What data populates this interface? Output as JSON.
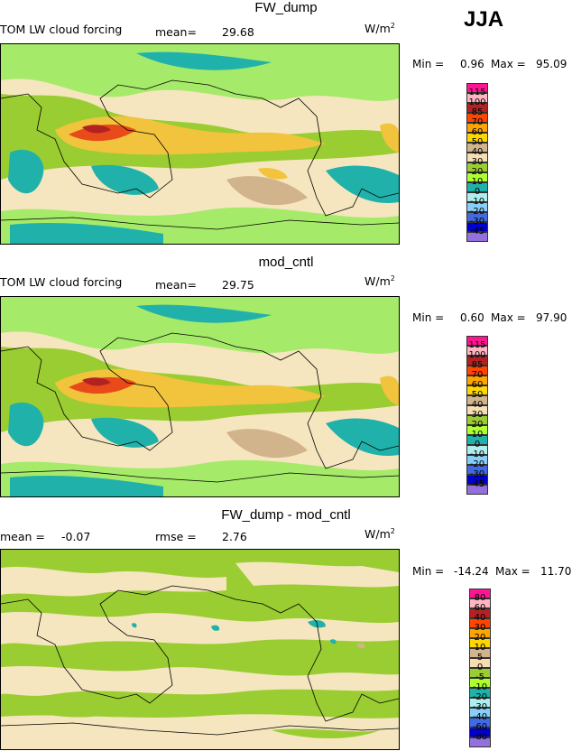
{
  "season": "JJA",
  "units": "W/m",
  "units_exp": "2",
  "panels": [
    {
      "id": "p1",
      "title": "FW_dump",
      "left_label": "TOM LW cloud forcing",
      "stat1_label": "mean=",
      "stat1_value": "29.68",
      "stat2_label": "",
      "stat2_value": "",
      "min_label": "Min =",
      "min_value": "0.96",
      "max_label": "Max =",
      "max_value": "95.09"
    },
    {
      "id": "p2",
      "title": "mod_cntl",
      "left_label": "TOM LW cloud forcing",
      "stat1_label": "mean=",
      "stat1_value": "29.75",
      "stat2_label": "",
      "stat2_value": "",
      "min_label": "Min =",
      "min_value": "0.60",
      "max_label": "Max =",
      "max_value": "97.90"
    },
    {
      "id": "p3",
      "title": "FW_dump - mod_cntl",
      "left_label": "",
      "stat1_label": "mean =",
      "stat1_value": "-0.07",
      "stat2_label": "rmse =",
      "stat2_value": "2.76",
      "min_label": "Min =",
      "min_value": "-14.24",
      "max_label": "Max =",
      "max_value": "11.70"
    }
  ],
  "chart_data": [
    {
      "type": "heatmap",
      "title": "FW_dump",
      "legend_levels": [
        "115",
        "100",
        "85",
        "70",
        "60",
        "50",
        "40",
        "30",
        "20",
        "10",
        "0",
        "-10",
        "-20",
        "-30",
        "-45"
      ],
      "legend_colors": [
        "#ff1493",
        "#ffb6c1",
        "#b22222",
        "#ff4500",
        "#ffa500",
        "#ffd700",
        "#d2b48c",
        "#f5deb3",
        "#9acd32",
        "#adff2f",
        "#20b2aa",
        "#afeeee",
        "#87cefa",
        "#4169e1",
        "#0000cd",
        "#9370db"
      ]
    },
    {
      "type": "heatmap",
      "title": "mod_cntl",
      "legend_levels": [
        "115",
        "100",
        "85",
        "70",
        "60",
        "50",
        "40",
        "30",
        "20",
        "10",
        "0",
        "-10",
        "-20",
        "-30",
        "-45"
      ],
      "legend_colors": [
        "#ff1493",
        "#ffb6c1",
        "#b22222",
        "#ff4500",
        "#ffa500",
        "#ffd700",
        "#d2b48c",
        "#f5deb3",
        "#9acd32",
        "#adff2f",
        "#20b2aa",
        "#afeeee",
        "#87cefa",
        "#4169e1",
        "#0000cd",
        "#9370db"
      ]
    },
    {
      "type": "heatmap",
      "title": "FW_dump - mod_cntl",
      "legend_levels": [
        "80",
        "60",
        "40",
        "30",
        "20",
        "10",
        "5",
        "0",
        "-5",
        "-10",
        "-20",
        "-30",
        "-40",
        "-60",
        "-80"
      ],
      "legend_colors": [
        "#ff1493",
        "#ffb6c1",
        "#b22222",
        "#ff4500",
        "#ffa500",
        "#ffd700",
        "#d2b48c",
        "#f5deb3",
        "#9acd32",
        "#adff2f",
        "#20b2aa",
        "#afeeee",
        "#87cefa",
        "#4169e1",
        "#0000cd",
        "#9370db"
      ]
    }
  ]
}
